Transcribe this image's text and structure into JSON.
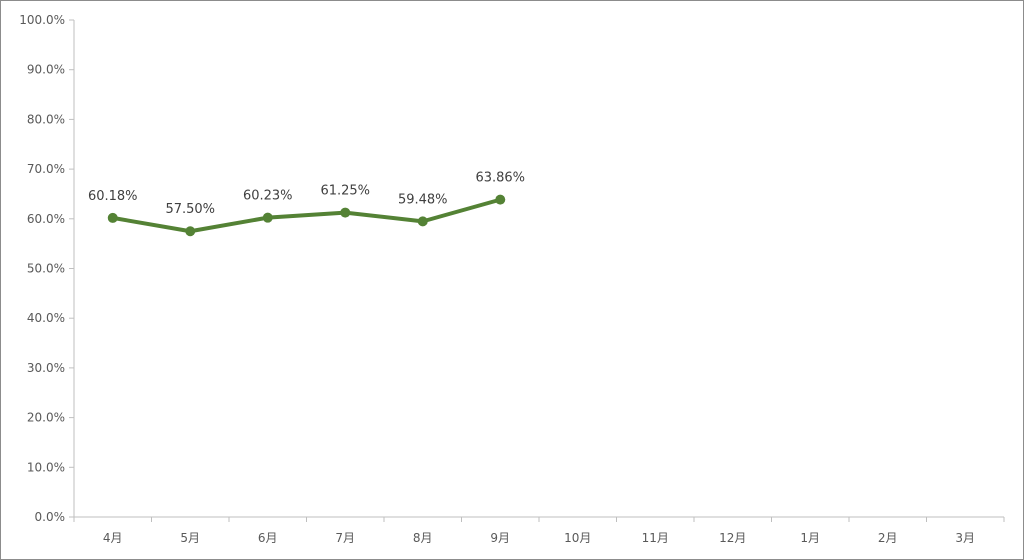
{
  "chart_data": {
    "type": "line",
    "title": "",
    "xlabel": "",
    "ylabel": "",
    "categories": [
      "4月",
      "5月",
      "6月",
      "7月",
      "8月",
      "9月",
      "10月",
      "11月",
      "12月",
      "1月",
      "2月",
      "3月"
    ],
    "y_ticks": [
      "0.0%",
      "10.0%",
      "20.0%",
      "30.0%",
      "40.0%",
      "50.0%",
      "60.0%",
      "70.0%",
      "80.0%",
      "90.0%",
      "100.0%"
    ],
    "ylim": [
      0,
      100
    ],
    "grid": false,
    "legend": "none",
    "series": [
      {
        "values": [
          60.18,
          57.5,
          60.23,
          61.25,
          59.48,
          63.86,
          null,
          null,
          null,
          null,
          null,
          null
        ],
        "labels": [
          "60.18%",
          "57.50%",
          "60.23%",
          "61.25%",
          "59.48%",
          "63.86%"
        ],
        "color": "#548235"
      }
    ],
    "colors": {
      "axis": "#bfbfbf",
      "text": "#595959",
      "label": "#404040",
      "border": "#8c8c8c"
    }
  }
}
